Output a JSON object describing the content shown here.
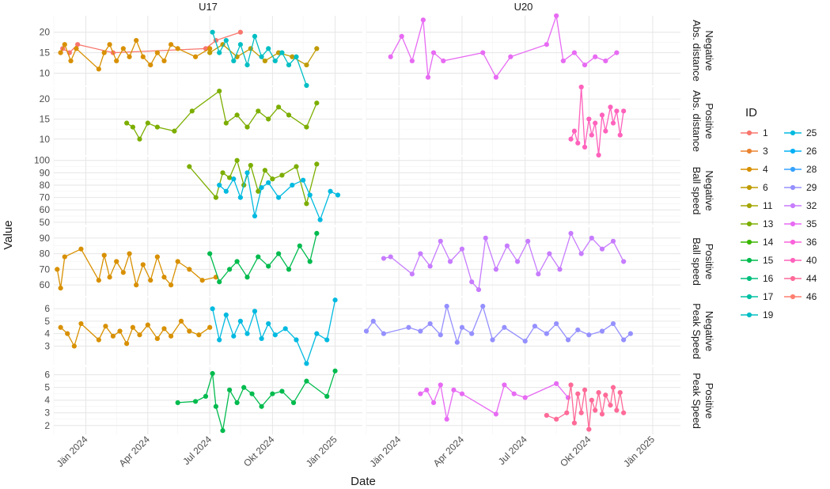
{
  "chart_data": {
    "type": "line",
    "xlabel": "Date",
    "ylabel": "Value",
    "x_ticks": [
      "Jän 2024",
      "Apr 2024",
      "Jul 2024",
      "Okt 2024",
      "Jän 2025"
    ],
    "columns": [
      "U17",
      "U20"
    ],
    "rows": [
      {
        "measure": "Abs. distance",
        "direction": "Negative",
        "yticks": [
          10,
          15,
          20
        ],
        "ylim": [
          7,
          24
        ]
      },
      {
        "measure": "Abs. distance",
        "direction": "Positive",
        "yticks": [
          10,
          15,
          20
        ],
        "ylim": [
          6,
          23
        ]
      },
      {
        "measure": "Ball speed",
        "direction": "Negative",
        "yticks": [
          50,
          60,
          70,
          80,
          90,
          100
        ],
        "ylim": [
          48,
          103
        ]
      },
      {
        "measure": "Ball speed",
        "direction": "Positive",
        "yticks": [
          60,
          70,
          80,
          90
        ],
        "ylim": [
          53,
          97
        ]
      },
      {
        "measure": "Peak Speed",
        "direction": "Negative",
        "yticks": [
          3,
          4,
          5,
          6
        ],
        "ylim": [
          1.5,
          6.9
        ]
      },
      {
        "measure": "Peak Speed",
        "direction": "Positive",
        "yticks": [
          2,
          3,
          4,
          5,
          6
        ],
        "ylim": [
          1.3,
          6.6
        ]
      }
    ],
    "legend": {
      "title": "ID",
      "entries": [
        {
          "id": "1",
          "color": "#F8766D"
        },
        {
          "id": "3",
          "color": "#EA8331"
        },
        {
          "id": "4",
          "color": "#D89000"
        },
        {
          "id": "6",
          "color": "#C09B00"
        },
        {
          "id": "11",
          "color": "#A3A500"
        },
        {
          "id": "13",
          "color": "#7CAE00"
        },
        {
          "id": "14",
          "color": "#39B600"
        },
        {
          "id": "15",
          "color": "#00BB4E"
        },
        {
          "id": "16",
          "color": "#00BF7D"
        },
        {
          "id": "17",
          "color": "#00C1A3"
        },
        {
          "id": "19",
          "color": "#00BFC4"
        },
        {
          "id": "25",
          "color": "#00BAE0"
        },
        {
          "id": "26",
          "color": "#00B0F6"
        },
        {
          "id": "28",
          "color": "#35A2FF"
        },
        {
          "id": "29",
          "color": "#9590FF"
        },
        {
          "id": "32",
          "color": "#C77CFF"
        },
        {
          "id": "35",
          "color": "#E76BF3"
        },
        {
          "id": "36",
          "color": "#FA62DB"
        },
        {
          "id": "40",
          "color": "#FF62BC"
        },
        {
          "id": "44",
          "color": "#FF6A98"
        },
        {
          "id": "46",
          "color": "#FF7F6F"
        }
      ]
    },
    "series": [
      {
        "id": "1",
        "panel": [
          0,
          0
        ],
        "x": [
          "2023-11-28",
          "2023-12-08",
          "2023-12-20",
          "2024-02-10",
          "2024-06-25",
          "2024-07-10",
          "2024-08-15"
        ],
        "y": [
          16,
          15,
          17,
          15,
          16,
          18,
          20
        ]
      },
      {
        "id": "4",
        "panel": [
          0,
          0
        ],
        "x": [
          "2023-11-25",
          "2023-12-01",
          "2023-12-10",
          "2023-12-18",
          "2024-01-20",
          "2024-01-28",
          "2024-02-05",
          "2024-02-15",
          "2024-02-25",
          "2024-03-05",
          "2024-03-15",
          "2024-03-25",
          "2024-04-05",
          "2024-04-15",
          "2024-04-25",
          "2024-05-05",
          "2024-05-15",
          "2024-06-10",
          "2024-07-01"
        ],
        "y": [
          15,
          17,
          13,
          16,
          11,
          15,
          17,
          13,
          16,
          14,
          18,
          14,
          12,
          15,
          13,
          17,
          16,
          14,
          16
        ]
      },
      {
        "id": "6",
        "panel": [
          0,
          0
        ],
        "x": [
          "2024-07-01",
          "2024-07-20",
          "2024-08-10",
          "2024-08-30",
          "2024-09-20",
          "2024-10-10",
          "2024-10-30",
          "2024-11-20",
          "2024-12-05"
        ],
        "y": [
          15,
          17,
          14,
          16,
          13,
          15,
          14,
          12,
          16
        ]
      },
      {
        "id": "19",
        "panel": [
          0,
          0
        ],
        "x": [
          "2024-07-05",
          "2024-07-15",
          "2024-07-25",
          "2024-08-05",
          "2024-08-15",
          "2024-08-25",
          "2024-09-05",
          "2024-09-15",
          "2024-09-25",
          "2024-10-05",
          "2024-10-15",
          "2024-10-25",
          "2024-11-05",
          "2024-11-20"
        ],
        "y": [
          20,
          15,
          18,
          13,
          17,
          12,
          19,
          14,
          16,
          13,
          15,
          12,
          14,
          7
        ]
      },
      {
        "id": "35",
        "panel": [
          0,
          1
        ],
        "x": [
          "2023-12-20",
          "2024-01-05",
          "2024-01-20",
          "2024-02-05",
          "2024-02-12",
          "2024-02-20",
          "2024-03-05",
          "2024-05-01",
          "2024-05-20",
          "2024-06-10",
          "2024-08-01",
          "2024-08-15",
          "2024-08-25",
          "2024-09-10",
          "2024-09-25",
          "2024-10-10",
          "2024-10-25",
          "2024-11-10"
        ],
        "y": [
          14,
          19,
          13,
          23,
          9,
          15,
          13,
          15,
          9,
          14,
          17,
          24,
          13,
          15,
          12,
          14,
          13,
          15
        ]
      },
      {
        "id": "13",
        "panel": [
          1,
          0
        ],
        "x": [
          "2024-03-01",
          "2024-03-10",
          "2024-03-20",
          "2024-04-01",
          "2024-04-15",
          "2024-05-10",
          "2024-06-05",
          "2024-07-15",
          "2024-07-25",
          "2024-08-10",
          "2024-08-25",
          "2024-09-10",
          "2024-09-25",
          "2024-10-10",
          "2024-10-25",
          "2024-11-20",
          "2024-12-05"
        ],
        "y": [
          14,
          13,
          10,
          14,
          13,
          12,
          17,
          22,
          14,
          16,
          13,
          17,
          15,
          18,
          16,
          13,
          19
        ]
      },
      {
        "id": "40",
        "panel": [
          1,
          1
        ],
        "x": [
          "2024-09-05",
          "2024-09-10",
          "2024-09-15",
          "2024-09-20",
          "2024-09-25",
          "2024-10-01",
          "2024-10-05",
          "2024-10-10",
          "2024-10-15",
          "2024-10-20",
          "2024-10-25",
          "2024-11-01",
          "2024-11-05",
          "2024-11-10",
          "2024-11-15",
          "2024-11-20"
        ],
        "y": [
          10,
          12,
          9,
          23,
          8,
          15,
          11,
          14,
          6,
          16,
          12,
          18,
          14,
          17,
          11,
          17
        ]
      },
      {
        "id": "13",
        "panel": [
          2,
          0
        ],
        "x": [
          "2024-06-01",
          "2024-07-10",
          "2024-07-20",
          "2024-07-30",
          "2024-08-10",
          "2024-08-20",
          "2024-08-30",
          "2024-09-10",
          "2024-09-20",
          "2024-10-01",
          "2024-10-15",
          "2024-11-05",
          "2024-11-20",
          "2024-12-05"
        ],
        "y": [
          95,
          70,
          90,
          86,
          100,
          80,
          96,
          75,
          92,
          85,
          88,
          95,
          65,
          97
        ]
      },
      {
        "id": "25",
        "panel": [
          2,
          0
        ],
        "x": [
          "2024-07-15",
          "2024-07-25",
          "2024-08-05",
          "2024-08-15",
          "2024-08-25",
          "2024-09-05",
          "2024-09-15",
          "2024-09-25",
          "2024-10-10",
          "2024-10-30",
          "2024-11-15",
          "2024-11-25",
          "2024-12-10",
          "2024-12-25",
          "2025-01-05"
        ],
        "y": [
          80,
          75,
          85,
          70,
          90,
          55,
          78,
          82,
          70,
          80,
          84,
          72,
          52,
          75,
          72
        ]
      },
      {
        "id": "4",
        "panel": [
          3,
          0
        ],
        "x": [
          "2023-11-20",
          "2023-11-25",
          "2023-12-01",
          "2023-12-25",
          "2024-01-20",
          "2024-01-28",
          "2024-02-05",
          "2024-02-15",
          "2024-02-25",
          "2024-03-05",
          "2024-03-15",
          "2024-03-25",
          "2024-04-05",
          "2024-04-15",
          "2024-04-25",
          "2024-05-05",
          "2024-05-15",
          "2024-06-01",
          "2024-06-20",
          "2024-07-10"
        ],
        "y": [
          70,
          58,
          78,
          83,
          63,
          79,
          65,
          75,
          68,
          80,
          60,
          73,
          63,
          78,
          65,
          60,
          75,
          70,
          63,
          65
        ]
      },
      {
        "id": "15",
        "panel": [
          3,
          0
        ],
        "x": [
          "2024-07-01",
          "2024-07-15",
          "2024-07-30",
          "2024-08-10",
          "2024-08-25",
          "2024-09-10",
          "2024-09-25",
          "2024-10-10",
          "2024-10-25",
          "2024-11-10",
          "2024-11-25",
          "2024-12-05"
        ],
        "y": [
          80,
          62,
          70,
          75,
          65,
          78,
          72,
          80,
          70,
          85,
          75,
          93
        ]
      },
      {
        "id": "32",
        "panel": [
          3,
          1
        ],
        "x": [
          "2023-12-10",
          "2023-12-20",
          "2024-01-20",
          "2024-02-01",
          "2024-02-15",
          "2024-03-01",
          "2024-03-15",
          "2024-04-01",
          "2024-04-15",
          "2024-04-25",
          "2024-05-05",
          "2024-05-20",
          "2024-06-05",
          "2024-06-20",
          "2024-07-05",
          "2024-07-20",
          "2024-08-05",
          "2024-08-20",
          "2024-09-05",
          "2024-09-20",
          "2024-10-05",
          "2024-10-20",
          "2024-11-05",
          "2024-11-20"
        ],
        "y": [
          77,
          78,
          67,
          80,
          72,
          88,
          75,
          83,
          62,
          57,
          90,
          70,
          85,
          75,
          88,
          67,
          80,
          70,
          93,
          80,
          90,
          83,
          88,
          75
        ]
      },
      {
        "id": "4",
        "panel": [
          4,
          0
        ],
        "x": [
          "2023-11-25",
          "2023-12-05",
          "2023-12-15",
          "2023-12-25",
          "2024-01-20",
          "2024-01-30",
          "2024-02-10",
          "2024-02-20",
          "2024-03-01",
          "2024-03-10",
          "2024-03-20",
          "2024-04-01",
          "2024-04-15",
          "2024-04-25",
          "2024-05-05",
          "2024-05-20",
          "2024-06-01",
          "2024-06-15",
          "2024-07-01"
        ],
        "y": [
          4.5,
          4.0,
          3.0,
          4.8,
          3.5,
          4.6,
          3.8,
          4.2,
          3.2,
          4.5,
          3.9,
          4.7,
          3.6,
          4.4,
          3.8,
          5.0,
          4.2,
          3.9,
          4.5
        ]
      },
      {
        "id": "25",
        "panel": [
          4,
          0
        ],
        "x": [
          "2024-07-05",
          "2024-07-15",
          "2024-07-25",
          "2024-08-05",
          "2024-08-15",
          "2024-08-25",
          "2024-09-05",
          "2024-09-15",
          "2024-09-25",
          "2024-10-05",
          "2024-10-20",
          "2024-11-05",
          "2024-11-20",
          "2024-12-05",
          "2024-12-20",
          "2025-01-01"
        ],
        "y": [
          6.0,
          3.5,
          5.5,
          3.8,
          5.0,
          4.0,
          5.8,
          3.6,
          4.8,
          3.9,
          4.4,
          3.5,
          1.6,
          4.0,
          3.5,
          6.7
        ]
      },
      {
        "id": "29",
        "panel": [
          4,
          1
        ],
        "x": [
          "2023-11-15",
          "2023-11-25",
          "2023-12-10",
          "2024-01-15",
          "2024-02-01",
          "2024-02-15",
          "2024-03-01",
          "2024-03-10",
          "2024-03-25",
          "2024-04-01",
          "2024-04-15",
          "2024-05-01",
          "2024-05-15",
          "2024-06-01",
          "2024-07-01",
          "2024-07-15",
          "2024-08-01",
          "2024-08-15",
          "2024-09-01",
          "2024-09-15",
          "2024-10-01",
          "2024-10-20",
          "2024-11-05",
          "2024-11-20",
          "2024-11-30"
        ],
        "y": [
          4.2,
          5.0,
          4.0,
          4.5,
          4.2,
          4.8,
          3.9,
          6.2,
          3.3,
          4.5,
          4.0,
          6.2,
          3.5,
          4.5,
          3.4,
          4.6,
          4.0,
          4.8,
          3.5,
          4.3,
          3.9,
          4.2,
          4.8,
          3.5,
          4.0
        ]
      },
      {
        "id": "15",
        "panel": [
          5,
          0
        ],
        "x": [
          "2024-05-15",
          "2024-06-10",
          "2024-06-25",
          "2024-07-05",
          "2024-07-10",
          "2024-07-20",
          "2024-07-30",
          "2024-08-10",
          "2024-08-20",
          "2024-09-01",
          "2024-09-15",
          "2024-10-01",
          "2024-10-15",
          "2024-11-01",
          "2024-11-20",
          "2024-12-20",
          "2025-01-01"
        ],
        "y": [
          3.8,
          3.9,
          4.3,
          6.1,
          3.5,
          1.6,
          4.8,
          3.8,
          5.0,
          4.5,
          3.5,
          4.5,
          4.7,
          3.8,
          5.5,
          4.3,
          6.3
        ]
      },
      {
        "id": "35",
        "panel": [
          5,
          1
        ],
        "x": [
          "2024-02-01",
          "2024-02-10",
          "2024-02-20",
          "2024-03-01",
          "2024-03-10",
          "2024-03-20",
          "2024-04-01",
          "2024-05-20",
          "2024-06-01",
          "2024-06-15",
          "2024-07-01",
          "2024-08-15",
          "2024-09-01"
        ],
        "y": [
          4.5,
          4.8,
          3.8,
          5.2,
          2.5,
          4.8,
          4.5,
          2.9,
          5.2,
          4.5,
          4.2,
          5.3,
          4.2
        ]
      },
      {
        "id": "44",
        "panel": [
          5,
          1
        ],
        "x": [
          "2024-08-01",
          "2024-08-15",
          "2024-08-30",
          "2024-09-05",
          "2024-09-10",
          "2024-09-15",
          "2024-09-20",
          "2024-09-25",
          "2024-10-01",
          "2024-10-05",
          "2024-10-10",
          "2024-10-15",
          "2024-10-20",
          "2024-10-25",
          "2024-11-01",
          "2024-11-05",
          "2024-11-10",
          "2024-11-15",
          "2024-11-20"
        ],
        "y": [
          2.8,
          2.5,
          3.0,
          5.2,
          2.2,
          4.5,
          3.0,
          4.8,
          1.7,
          4.0,
          3.2,
          4.6,
          2.9,
          4.4,
          3.6,
          5.0,
          3.2,
          4.6,
          3.0
        ]
      }
    ]
  }
}
